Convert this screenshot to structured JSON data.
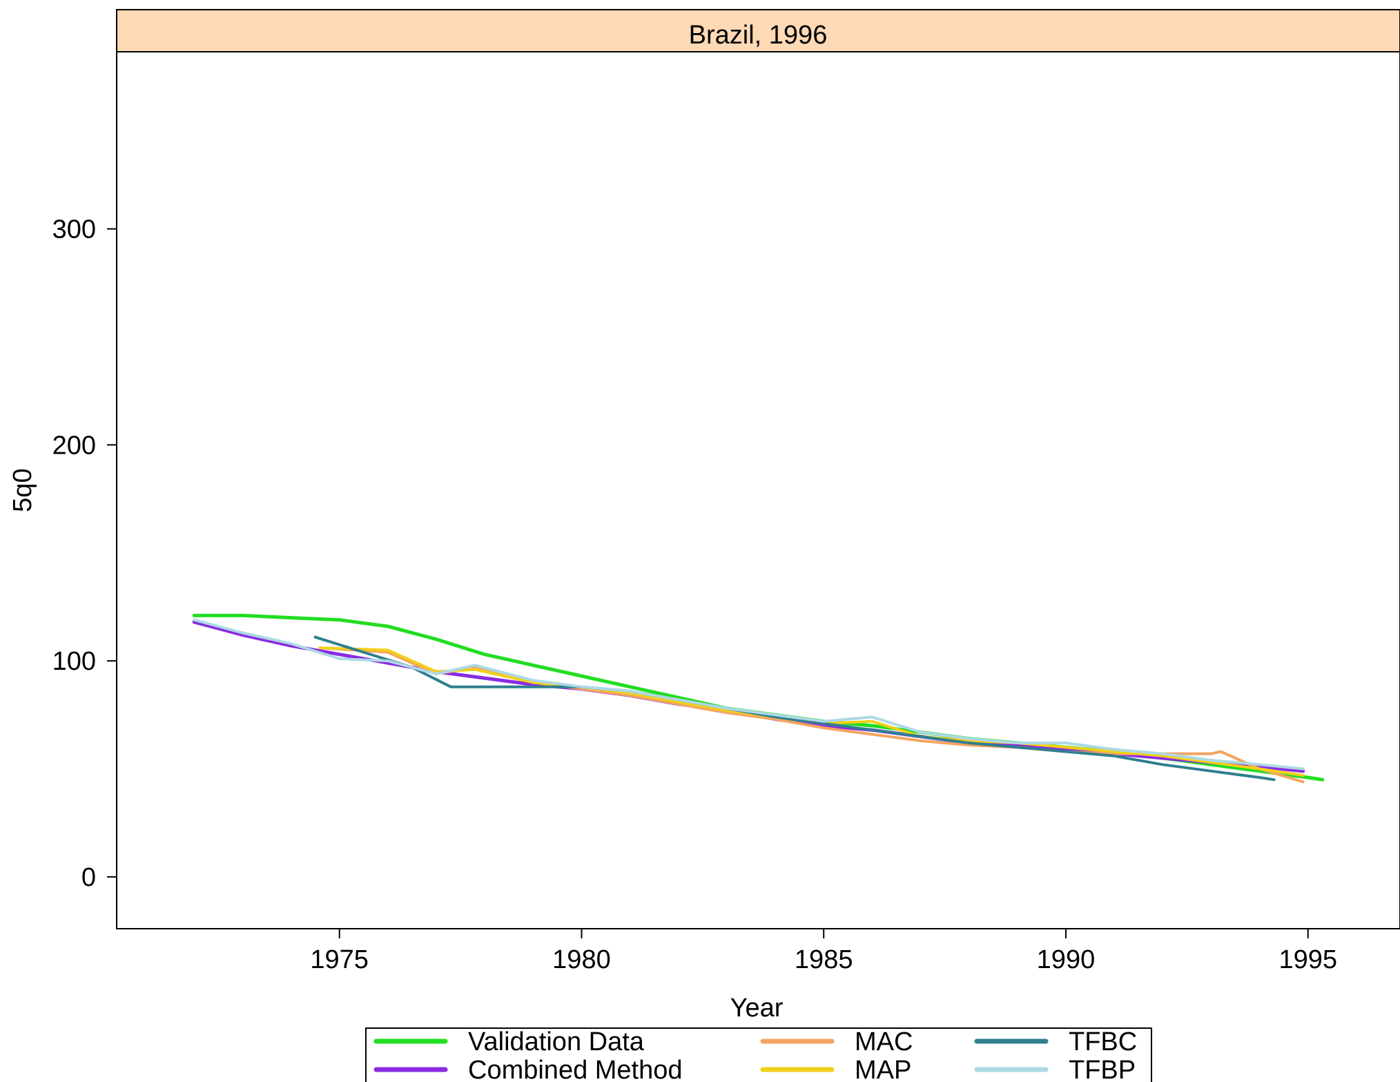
{
  "chart_data": {
    "type": "line",
    "title": "Brazil, 1996",
    "xlabel": "Year",
    "ylabel": "5q0",
    "xlim": [
      1970.4,
      1996.9
    ],
    "ylim": [
      -24,
      382
    ],
    "x_ticks": [
      1975,
      1980,
      1985,
      1990,
      1995
    ],
    "y_ticks": [
      0,
      100,
      200,
      300
    ],
    "grid": false,
    "legend_position": "bottom",
    "strip_color": "#fdd9b5",
    "series": [
      {
        "name": "Validation Data",
        "color": "#22dd22",
        "x": [
          1972,
          1973,
          1974,
          1975,
          1976,
          1977,
          1978,
          1979,
          1980,
          1981,
          1982,
          1983,
          1984,
          1985,
          1986,
          1987,
          1988,
          1989,
          1990,
          1991,
          1992,
          1993,
          1994,
          1995,
          1995.3
        ],
        "y": [
          121,
          121,
          120,
          119,
          116,
          110,
          103,
          98,
          93,
          88,
          83,
          78,
          75,
          72,
          70,
          67,
          64,
          62,
          60,
          58,
          55,
          52,
          49,
          46,
          45
        ]
      },
      {
        "name": "Combined Method",
        "color": "#8a2be2",
        "x": [
          1972,
          1973,
          1974,
          1975,
          1976,
          1977,
          1978,
          1979,
          1980,
          1981,
          1982,
          1983,
          1984,
          1985,
          1986,
          1987,
          1988,
          1989,
          1990,
          1991,
          1992,
          1993,
          1994,
          1994.9
        ],
        "y": [
          118,
          112,
          107,
          103,
          99,
          95,
          92,
          89,
          87,
          84,
          80,
          77,
          73,
          70,
          68,
          65,
          62,
          61,
          59,
          57,
          55,
          53,
          51,
          49
        ]
      },
      {
        "name": "MAC",
        "color": "#f4a460",
        "x": [
          1974.6,
          1976,
          1977,
          1977.8,
          1979,
          1980,
          1981,
          1982,
          1983,
          1984,
          1985,
          1986,
          1987,
          1988,
          1989,
          1990,
          1991,
          1992,
          1993,
          1993.2,
          1994,
          1994.9
        ],
        "y": [
          106,
          104,
          94,
          97,
          90,
          87,
          84,
          80,
          76,
          73,
          69,
          66,
          63,
          61,
          60,
          58,
          57,
          57,
          57,
          58,
          50,
          44
        ]
      },
      {
        "name": "MAP",
        "color": "#f1d01a",
        "x": [
          1974.6,
          1976,
          1977,
          1977.8,
          1979,
          1980,
          1981,
          1982,
          1983,
          1984,
          1985,
          1986,
          1987,
          1988,
          1989,
          1990,
          1991,
          1992,
          1993,
          1994,
          1994.9
        ],
        "y": [
          106,
          105,
          95,
          96,
          90,
          88,
          85,
          81,
          77,
          74,
          71,
          72,
          65,
          63,
          62,
          60,
          58,
          56,
          53,
          50,
          47
        ]
      },
      {
        "name": "TFBC",
        "color": "#2f7f8f",
        "x": [
          1974.5,
          1975.5,
          1976.5,
          1977.3,
          1978,
          1979,
          1980,
          1981,
          1982,
          1983,
          1984,
          1985,
          1986,
          1987,
          1988,
          1989,
          1990,
          1991,
          1992,
          1993,
          1994,
          1994.3
        ],
        "y": [
          111,
          104,
          97,
          88,
          88,
          88,
          88,
          86,
          82,
          78,
          74,
          71,
          68,
          65,
          62,
          60,
          58,
          56,
          52,
          49,
          46,
          45
        ]
      },
      {
        "name": "TFBP",
        "color": "#add8e6",
        "x": [
          1972,
          1973,
          1974,
          1975,
          1976,
          1977,
          1977.8,
          1979,
          1980,
          1981,
          1982,
          1983,
          1984,
          1985,
          1986,
          1987,
          1988,
          1989,
          1990,
          1991,
          1992,
          1993,
          1994,
          1994.9
        ],
        "y": [
          119,
          113,
          108,
          101,
          100,
          94,
          98,
          91,
          88,
          86,
          82,
          78,
          75,
          72,
          74,
          67,
          64,
          62,
          62,
          59,
          57,
          54,
          52,
          50
        ]
      }
    ]
  }
}
